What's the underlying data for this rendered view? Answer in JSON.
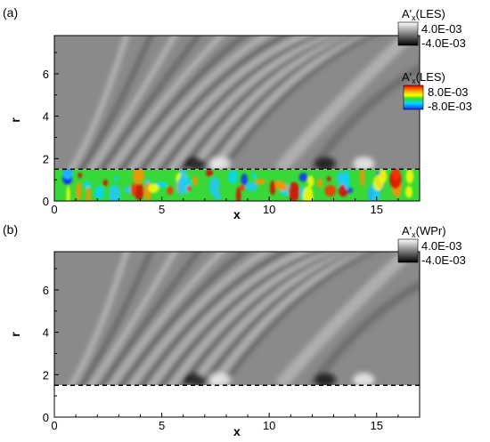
{
  "chart_data": [
    {
      "type": "heatmap",
      "panel_label": "(a)",
      "xlabel": "x",
      "ylabel": "r",
      "xlim": [
        0,
        17
      ],
      "ylim": [
        0,
        7.8
      ],
      "x_ticks": [
        0,
        5,
        10,
        15
      ],
      "y_ticks": [
        0,
        2,
        4,
        6
      ],
      "x_tick_labels": [
        "0",
        "5",
        "10",
        "15"
      ],
      "y_tick_labels": [
        "0",
        "2",
        "4",
        "6"
      ],
      "dashed_line_r": 1.5,
      "series": [
        {
          "title": "A'x(LES)",
          "region": "r > 1.5",
          "colormap": "grayscale",
          "range": [
            -0.004,
            0.004
          ],
          "range_labels": [
            "4.0E-03",
            "-4.0E-03"
          ]
        },
        {
          "title": "A'x(LES)",
          "region": "r < 1.5",
          "colormap": "rainbow",
          "range": [
            -0.008,
            0.008
          ],
          "range_labels": [
            "8.0E-03",
            "-8.0E-03"
          ]
        }
      ]
    },
    {
      "type": "heatmap",
      "panel_label": "(b)",
      "xlabel": "x",
      "ylabel": "r",
      "xlim": [
        0,
        17
      ],
      "ylim": [
        0,
        7.8
      ],
      "x_ticks": [
        0,
        5,
        10,
        15
      ],
      "y_ticks": [
        0,
        2,
        4,
        6
      ],
      "x_tick_labels": [
        "0",
        "5",
        "10",
        "15"
      ],
      "y_tick_labels": [
        "0",
        "2",
        "4",
        "6"
      ],
      "dashed_line_r": 1.5,
      "series": [
        {
          "title": "A'x(WPr)",
          "region": "r > 1.5",
          "colormap": "grayscale",
          "range": [
            -0.004,
            0.004
          ],
          "range_labels": [
            "4.0E-03",
            "-4.0E-03"
          ]
        }
      ]
    }
  ]
}
